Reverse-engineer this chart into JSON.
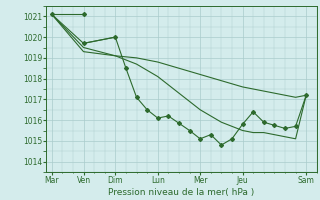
{
  "background_color": "#d4ecec",
  "grid_color": "#aacccc",
  "line_color": "#2d6a2d",
  "marker_color": "#2d6a2d",
  "title": "Pression niveau de la mer( hPa )",
  "ylim": [
    1013.5,
    1021.5
  ],
  "yticks": [
    1014,
    1015,
    1016,
    1017,
    1018,
    1019,
    1020,
    1021
  ],
  "day_labels": [
    "Mar",
    "Ven",
    "Dim",
    "Lun",
    "Mer",
    "Jeu",
    "Sam"
  ],
  "day_positions": [
    0,
    3,
    6,
    10,
    14,
    18,
    24
  ],
  "xlim": [
    -0.5,
    25
  ],
  "series": [
    {
      "x": [
        0,
        3,
        6,
        7,
        8,
        9,
        10,
        11,
        12,
        13,
        14,
        15,
        16,
        17,
        18,
        19,
        20,
        21,
        22,
        23,
        24
      ],
      "y": [
        1021.1,
        1019.5,
        1019.1,
        1019.05,
        1019.0,
        1018.9,
        1018.8,
        1018.65,
        1018.5,
        1018.35,
        1018.2,
        1018.05,
        1017.9,
        1017.75,
        1017.6,
        1017.5,
        1017.4,
        1017.3,
        1017.2,
        1017.1,
        1017.2
      ],
      "with_markers": false
    },
    {
      "x": [
        0,
        3,
        6,
        7,
        8,
        9,
        10,
        11,
        12,
        13,
        14,
        15,
        16,
        17,
        18,
        19,
        20,
        21,
        22,
        23,
        24
      ],
      "y": [
        1021.1,
        1019.3,
        1019.1,
        1018.9,
        1018.7,
        1018.4,
        1018.1,
        1017.7,
        1017.3,
        1016.9,
        1016.5,
        1016.2,
        1015.9,
        1015.7,
        1015.5,
        1015.4,
        1015.4,
        1015.3,
        1015.2,
        1015.1,
        1017.2
      ],
      "with_markers": false
    },
    {
      "x": [
        0,
        3,
        6
      ],
      "y": [
        1021.1,
        1019.7,
        1020.0
      ],
      "with_markers": false
    },
    {
      "x": [
        3,
        6,
        7,
        8,
        9,
        10,
        11,
        12,
        13,
        14,
        15,
        16,
        17,
        18,
        19,
        20,
        21,
        22,
        23,
        24
      ],
      "y": [
        1019.7,
        1020.0,
        1018.5,
        1017.1,
        1016.5,
        1016.1,
        1016.2,
        1015.85,
        1015.5,
        1015.1,
        1015.3,
        1014.8,
        1015.1,
        1015.8,
        1016.4,
        1015.9,
        1015.75,
        1015.6,
        1015.7,
        1017.2
      ],
      "with_markers": true
    },
    {
      "x": [
        0,
        3
      ],
      "y": [
        1021.1,
        1021.1
      ],
      "with_markers": true
    }
  ]
}
